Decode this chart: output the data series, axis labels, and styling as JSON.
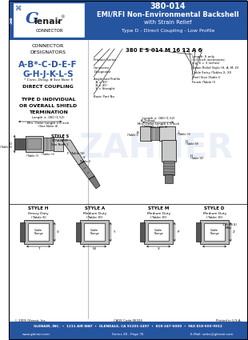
{
  "title_line1": "380-014",
  "title_line2": "EMI/RFI Non-Environmental Backshell",
  "title_line3": "with Strain Relief",
  "title_line4": "Type D - Direct Coupling - Low Profile",
  "header_bg": "#2655a0",
  "logo_bg": "#2655a0",
  "series_label": "38",
  "connector_designators_title": "CONNECTOR\nDESIGNATORS",
  "connector_designators_line1": "A-B*-C-D-E-F",
  "connector_designators_line2": "G-H-J-K-L-S",
  "designators_color": "#2655a0",
  "footnote": "* Conn. Desig. B See Note 5",
  "direct_coupling": "DIRECT COUPLING",
  "type_d_title": "TYPE D INDIVIDUAL\nOR OVERALL SHIELD\nTERMINATION",
  "part_number_label": "380 E S 014 M 16 12 A 6",
  "footer_company": "GLENAIR, INC.  •  1211 AIR WAY  •  GLENDALE, CA 91201-2497  •  818-247-6000  •  FAX 818-500-9912",
  "footer_web": "www.glenair.com",
  "footer_series": "Series 38 - Page 76",
  "footer_email": "E-Mail: sales@glenair.com",
  "footer_bg": "#2655a0",
  "copyright": "© 2005 Glenair, Inc.",
  "cage_code": "CAGE Code:06324",
  "printed": "Printed in U.S.A.",
  "bg_color": "#ffffff",
  "watermark_text": "ZAHNER",
  "style_h_label": "STYLE H",
  "style_h_sub": "Heavy Duty\n(Table K)",
  "style_a_label": "STYLE A",
  "style_a_sub": "Medium Duty\n(Table XI)",
  "style_m_label": "STYLE M",
  "style_m_sub": "Medium Duty\n(Table XI)",
  "style_d_label": "STYLE D",
  "style_d_sub": "Medium Duty\n(Table XI)",
  "gray_light": "#d8d8d8",
  "gray_med": "#b0b0b0",
  "gray_dark": "#888888",
  "gray_hatch": "#999999"
}
